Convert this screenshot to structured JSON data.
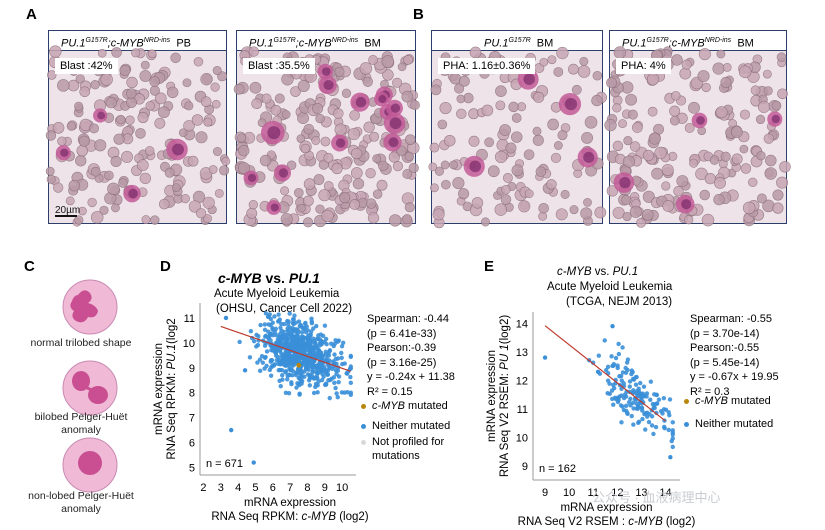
{
  "panels": {
    "a": "A",
    "b": "B",
    "c": "C",
    "d": "D",
    "e": "E"
  },
  "micrographs": [
    {
      "genotype": "PU.1",
      "sup1": "G157R",
      "mid": ";c-",
      "gene2": "MYB",
      "sup2": "NRD-ins",
      "tissue": "PB",
      "label": "Blast :42%",
      "scale": "20µm"
    },
    {
      "genotype": "PU.1",
      "sup1": "G157R",
      "mid": ";c-",
      "gene2": "MYB",
      "sup2": "NRD-ins",
      "tissue": "BM",
      "label": "Blast :35.5%"
    },
    {
      "genotype": "PU.1",
      "sup1": "G157R",
      "tissue": "BM",
      "label": "PHA: 1.16±0.36%"
    },
    {
      "genotype": "PU.1",
      "sup1": "G157R",
      "mid": ";c-",
      "gene2": "MYB",
      "sup2": "NRD-ins",
      "tissue": "BM",
      "label": "PHA: 4%"
    }
  ],
  "cells": [
    {
      "caption": "normal trilobed shape"
    },
    {
      "caption": "bilobed  Pelger-Huët anomaly"
    },
    {
      "caption": "non-lobed Pelger-Huët anomaly"
    }
  ],
  "colors": {
    "point": "#3a8fd8",
    "mutated": "#b8860b",
    "not_profiled": "#d9d9d9",
    "fit": "#c0392b",
    "cell": "#f0b9d6",
    "nucleus": "#c94f92"
  },
  "chart_data": [
    {
      "type": "scatter",
      "title_gene1": "c-MYB",
      "title_vs": " vs. ",
      "title_gene2": "PU.1",
      "subtitle1": "Acute Myeloid Leukemia",
      "subtitle2": "(OHSU, Cancer Cell 2022)",
      "xlabel1": "mRNA expression",
      "xlabel2": "RNA Seq RPKM:",
      "xlabel2_gene": "c-MYB",
      "xlabel2_suffix": " (log2)",
      "ylabel1": "mRNA expression",
      "ylabel2": "RNA Seq RPKM:",
      "ylabel2_gene": "PU.1",
      "ylabel2_suffix": "(log2",
      "xlim": [
        1.8,
        10.8
      ],
      "ylim": [
        4.7,
        11.6
      ],
      "xticks": [
        2,
        3,
        4,
        5,
        6,
        7,
        8,
        9,
        10
      ],
      "yticks": [
        5,
        6,
        7,
        8,
        9,
        10,
        11
      ],
      "n": "n = 671",
      "n_points": 671,
      "cloud_center": [
        7.6,
        9.4
      ],
      "fit": {
        "slope": -0.24,
        "intercept": 11.38,
        "x_range": [
          3.0,
          10.5
        ]
      },
      "stats": [
        "Spearman: -0.44",
        "(p = 6.41e-33)",
        "Pearson:-0.39",
        "(p = 3.16e-25)",
        "y = -0.24x + 11.38",
        "R² = 0.15"
      ],
      "legend": [
        {
          "gene": "c-MYB",
          "text": " mutated",
          "color": "#b8860b"
        },
        {
          "gene": "",
          "text": "Neither mutated",
          "color": "#3a8fd8"
        },
        {
          "gene": "",
          "text": "Not profiled for",
          "color": "#d9d9d9"
        },
        {
          "gene": "",
          "text": "mutations",
          "color": ""
        }
      ],
      "outliers": [
        [
          3.6,
          6.5
        ],
        [
          4.9,
          5.2
        ],
        [
          3.3,
          11.0
        ],
        [
          4.4,
          8.9
        ],
        [
          5.9,
          9.3
        ]
      ],
      "mutated_points": [
        [
          7.5,
          9.1
        ]
      ]
    },
    {
      "type": "scatter",
      "title_gene1": "c-MYB",
      "title_vs": " vs. ",
      "title_gene2": "PU.1",
      "subtitle1": "Acute Myeloid Leukemia",
      "subtitle2": "(TCGA, NEJM 2013)",
      "xlabel1": "mRNA expression",
      "xlabel2": "RNA Seq V2 RSEM :",
      "xlabel2_gene": "c-MYB",
      "xlabel2_suffix": " (log2)",
      "ylabel1": "mRNA expression",
      "ylabel2": "RNA Seq V2 RSEM:",
      "ylabel2_gene": "PU 1",
      "ylabel2_suffix": "(log2)",
      "xlim": [
        8.5,
        14.6
      ],
      "ylim": [
        8.5,
        14.4
      ],
      "xticks": [
        9,
        10,
        11,
        12,
        13,
        14
      ],
      "yticks": [
        9,
        10,
        11,
        12,
        13,
        14
      ],
      "n": "n = 162",
      "n_points": 162,
      "cloud_center": [
        12.8,
        11.4
      ],
      "fit": {
        "slope": -0.67,
        "intercept": 19.95,
        "x_range": [
          9.0,
          14.0
        ]
      },
      "stats": [
        "Spearman: -0.55",
        "(p = 3.70e-14)",
        "Pearson:-0.55",
        "(p = 5.45e-14)",
        "y = -0.67x + 19.95",
        "R² = 0.3"
      ],
      "legend": [
        {
          "gene": "c-MYB",
          "text": " mutated",
          "color": "#b8860b"
        },
        {
          "gene": "",
          "text": "Neither mutated",
          "color": "#3a8fd8"
        }
      ],
      "outliers": [
        [
          9.0,
          12.8
        ],
        [
          11.8,
          13.9
        ],
        [
          11.2,
          12.3
        ],
        [
          14.2,
          9.3
        ]
      ],
      "mutated_points": []
    }
  ],
  "watermark": "公众号 · 血液病理中心"
}
